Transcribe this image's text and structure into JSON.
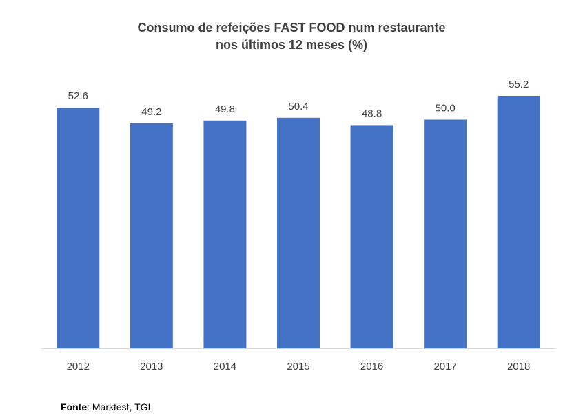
{
  "chart_data": {
    "type": "bar",
    "title_line1": "Consumo de refeições FAST FOOD num restaurante",
    "title_line2": "nos últimos 12 meses (%)",
    "categories": [
      "2012",
      "2013",
      "2014",
      "2015",
      "2016",
      "2017",
      "2018"
    ],
    "values": [
      52.6,
      49.2,
      49.8,
      50.4,
      48.8,
      50.0,
      55.2
    ],
    "value_labels": [
      "52.6",
      "49.2",
      "49.8",
      "50.4",
      "48.8",
      "50.0",
      "55.2"
    ],
    "xlabel": "",
    "ylabel": "",
    "ylim": [
      0,
      60
    ],
    "grid": false,
    "legend": "none",
    "bar_color": "#4472C4"
  },
  "source": {
    "label": "Fonte",
    "text": ": Marktest, TGI"
  }
}
